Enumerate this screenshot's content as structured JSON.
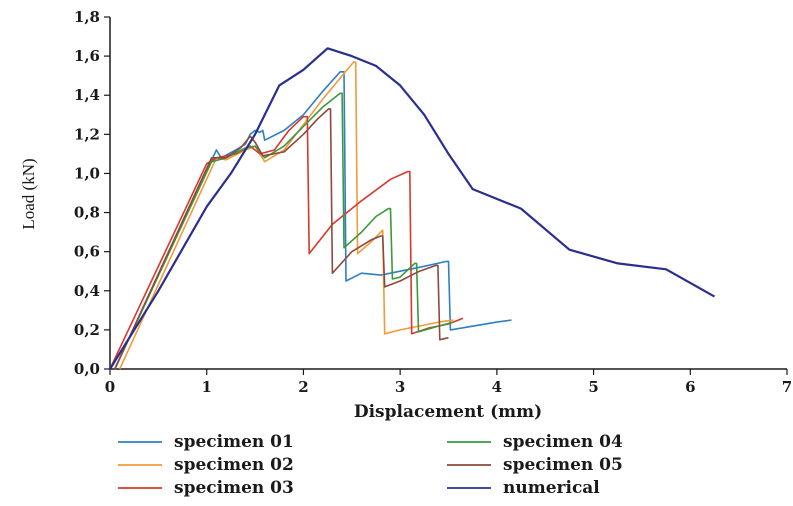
{
  "chart_data": {
    "type": "line",
    "xlabel": "Displacement (mm)",
    "ylabel": "Load (kN)",
    "xlim": [
      0,
      7
    ],
    "ylim": [
      0,
      1.8
    ],
    "xticks": [
      "0",
      "1",
      "2",
      "3",
      "4",
      "5",
      "6",
      "7"
    ],
    "yticks": [
      "0,0",
      "0,2",
      "0,4",
      "0,6",
      "0,8",
      "1,0",
      "1,2",
      "1,4",
      "1,6",
      "1,8"
    ],
    "grid": false,
    "legend_position": "bottom",
    "series": [
      {
        "name": "specimen 01",
        "color": "#2f7fc1",
        "points": [
          [
            0.05,
            0
          ],
          [
            1.1,
            1.12
          ],
          [
            1.15,
            1.08
          ],
          [
            1.3,
            1.12
          ],
          [
            1.4,
            1.15
          ],
          [
            1.45,
            1.2
          ],
          [
            1.5,
            1.22
          ],
          [
            1.55,
            1.21
          ],
          [
            1.58,
            1.22
          ],
          [
            1.6,
            1.17
          ],
          [
            1.8,
            1.22
          ],
          [
            2.0,
            1.3
          ],
          [
            2.2,
            1.42
          ],
          [
            2.38,
            1.52
          ],
          [
            2.42,
            1.52
          ],
          [
            2.44,
            0.45
          ],
          [
            2.6,
            0.49
          ],
          [
            2.8,
            0.48
          ],
          [
            3.0,
            0.5
          ],
          [
            3.2,
            0.52
          ],
          [
            3.48,
            0.55
          ],
          [
            3.5,
            0.55
          ],
          [
            3.52,
            0.2
          ],
          [
            4.0,
            0.24
          ],
          [
            4.15,
            0.25
          ]
        ]
      },
      {
        "name": "specimen 02",
        "color": "#f39a3b",
        "points": [
          [
            0.1,
            0
          ],
          [
            1.1,
            1.08
          ],
          [
            1.2,
            1.07
          ],
          [
            1.4,
            1.12
          ],
          [
            1.5,
            1.14
          ],
          [
            1.6,
            1.06
          ],
          [
            1.8,
            1.12
          ],
          [
            2.0,
            1.25
          ],
          [
            2.2,
            1.38
          ],
          [
            2.4,
            1.5
          ],
          [
            2.52,
            1.57
          ],
          [
            2.54,
            1.57
          ],
          [
            2.56,
            0.59
          ],
          [
            2.7,
            0.65
          ],
          [
            2.8,
            0.7
          ],
          [
            2.82,
            0.71
          ],
          [
            2.84,
            0.18
          ],
          [
            3.0,
            0.2
          ],
          [
            3.2,
            0.22
          ],
          [
            3.4,
            0.24
          ],
          [
            3.55,
            0.25
          ]
        ]
      },
      {
        "name": "specimen 03",
        "color": "#d9372b",
        "points": [
          [
            0.0,
            0
          ],
          [
            1.0,
            1.05
          ],
          [
            1.1,
            1.08
          ],
          [
            1.3,
            1.1
          ],
          [
            1.45,
            1.14
          ],
          [
            1.55,
            1.1
          ],
          [
            1.7,
            1.12
          ],
          [
            1.85,
            1.22
          ],
          [
            2.0,
            1.29
          ],
          [
            2.04,
            1.29
          ],
          [
            2.06,
            0.59
          ],
          [
            2.3,
            0.74
          ],
          [
            2.6,
            0.86
          ],
          [
            2.9,
            0.97
          ],
          [
            3.08,
            1.01
          ],
          [
            3.1,
            1.01
          ],
          [
            3.12,
            0.18
          ],
          [
            3.3,
            0.21
          ],
          [
            3.5,
            0.23
          ],
          [
            3.65,
            0.26
          ]
        ]
      },
      {
        "name": "specimen 04",
        "color": "#3a9a3a",
        "points": [
          [
            0.05,
            0
          ],
          [
            1.05,
            1.06
          ],
          [
            1.2,
            1.08
          ],
          [
            1.4,
            1.13
          ],
          [
            1.5,
            1.14
          ],
          [
            1.6,
            1.08
          ],
          [
            1.8,
            1.14
          ],
          [
            2.0,
            1.24
          ],
          [
            2.2,
            1.34
          ],
          [
            2.38,
            1.41
          ],
          [
            2.4,
            1.41
          ],
          [
            2.42,
            0.62
          ],
          [
            2.6,
            0.7
          ],
          [
            2.75,
            0.78
          ],
          [
            2.88,
            0.82
          ],
          [
            2.9,
            0.82
          ],
          [
            2.92,
            0.46
          ],
          [
            3.0,
            0.47
          ],
          [
            3.15,
            0.54
          ],
          [
            3.17,
            0.54
          ],
          [
            3.19,
            0.19
          ],
          [
            3.4,
            0.22
          ],
          [
            3.55,
            0.24
          ]
        ]
      },
      {
        "name": "specimen 05",
        "color": "#8b4a3c",
        "points": [
          [
            0.05,
            0
          ],
          [
            1.05,
            1.08
          ],
          [
            1.2,
            1.08
          ],
          [
            1.35,
            1.13
          ],
          [
            1.45,
            1.19
          ],
          [
            1.5,
            1.16
          ],
          [
            1.58,
            1.09
          ],
          [
            1.8,
            1.11
          ],
          [
            2.0,
            1.2
          ],
          [
            2.15,
            1.28
          ],
          [
            2.26,
            1.33
          ],
          [
            2.28,
            1.33
          ],
          [
            2.3,
            0.49
          ],
          [
            2.5,
            0.6
          ],
          [
            2.7,
            0.66
          ],
          [
            2.8,
            0.68
          ],
          [
            2.82,
            0.68
          ],
          [
            2.84,
            0.42
          ],
          [
            3.0,
            0.45
          ],
          [
            3.2,
            0.5
          ],
          [
            3.37,
            0.53
          ],
          [
            3.39,
            0.53
          ],
          [
            3.41,
            0.15
          ],
          [
            3.5,
            0.16
          ]
        ]
      },
      {
        "name": "numerical",
        "color": "#2a2f8f",
        "points": [
          [
            0,
            0
          ],
          [
            0.5,
            0.4
          ],
          [
            1.0,
            0.83
          ],
          [
            1.25,
            1.0
          ],
          [
            1.5,
            1.2
          ],
          [
            1.75,
            1.45
          ],
          [
            2.0,
            1.53
          ],
          [
            2.25,
            1.64
          ],
          [
            2.5,
            1.6
          ],
          [
            2.75,
            1.55
          ],
          [
            3.0,
            1.45
          ],
          [
            3.25,
            1.3
          ],
          [
            3.5,
            1.1
          ],
          [
            3.75,
            0.92
          ],
          [
            4.25,
            0.82
          ],
          [
            4.75,
            0.61
          ],
          [
            5.25,
            0.54
          ],
          [
            5.75,
            0.51
          ],
          [
            6.25,
            0.37
          ]
        ]
      }
    ]
  }
}
